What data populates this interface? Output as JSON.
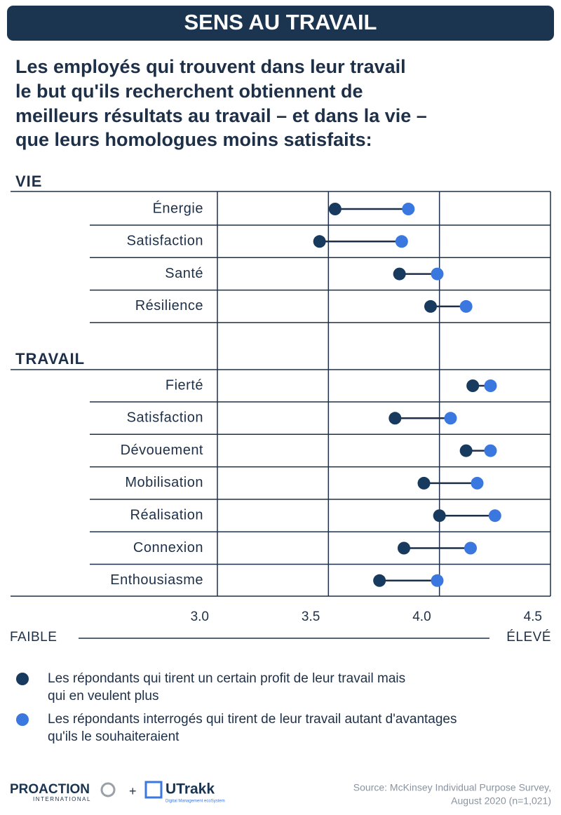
{
  "header": {
    "title": "SENS AU TRAVAIL"
  },
  "title": [
    "Les employés qui trouvent dans leur travail",
    "le but qu'ils recherchent obtiennent de",
    "meilleurs résultats au travail – et dans la vie –",
    "que leurs homologues moins satisfaits:"
  ],
  "chart_data": [
    {
      "type": "dumbbell",
      "title": "VIE",
      "categories": [
        "Énergie",
        "Satisfaction",
        "Santé",
        "Résilience"
      ],
      "series": [
        {
          "name": "Les répondants qui tirent un certain profit de leur travail mais qui en veulent plus",
          "color": "#173a5e",
          "values": [
            3.53,
            3.46,
            3.82,
            3.96
          ]
        },
        {
          "name": "Les répondants interrogés qui tirent de leur travail autant d'avantages qu'ils le souhaiteraient",
          "color": "#3a78e0",
          "values": [
            3.86,
            3.83,
            3.99,
            4.12
          ]
        }
      ],
      "xlim": [
        3,
        4.5
      ],
      "xticks": [
        {
          "value": 3,
          "label": "3.0"
        },
        3.5,
        {
          "value": 4,
          "label": "4.0"
        },
        4.5
      ],
      "grid": true
    },
    {
      "type": "dumbbell",
      "title": "TRAVAIL",
      "categories": [
        "Fierté",
        "Satisfaction",
        "Dévouement",
        "Mobilisation",
        "Réalisation",
        "Connexion",
        "Enthousiasme"
      ],
      "series": [
        {
          "color": "#173a5e",
          "values": [
            4.15,
            3.8,
            4.12,
            3.93,
            4.0,
            3.84,
            3.73
          ]
        },
        {
          "color": "#3a78e0",
          "values": [
            4.23,
            4.05,
            4.23,
            4.17,
            4.25,
            4.14,
            3.99
          ]
        }
      ],
      "xlim": [
        3,
        4.5
      ],
      "xticks": [
        {
          "value": 3,
          "label": "3.0"
        },
        3.5,
        {
          "value": 4,
          "label": "4.0"
        },
        4.5
      ],
      "grid": true,
      "axis_low_label": "FAIBLE",
      "axis_high_label": "ÉLEVÉ"
    }
  ],
  "footer": {
    "brand1": "PROACTION",
    "brand1_sub": "INTERNATIONAL",
    "plus": "+",
    "brand2": "UTrakk",
    "brand2_sub": "Digital Management ecoSystem",
    "source": [
      "Source: McKinsey Individual Purpose Survey,",
      "August 2020 (n=1,021)"
    ]
  }
}
